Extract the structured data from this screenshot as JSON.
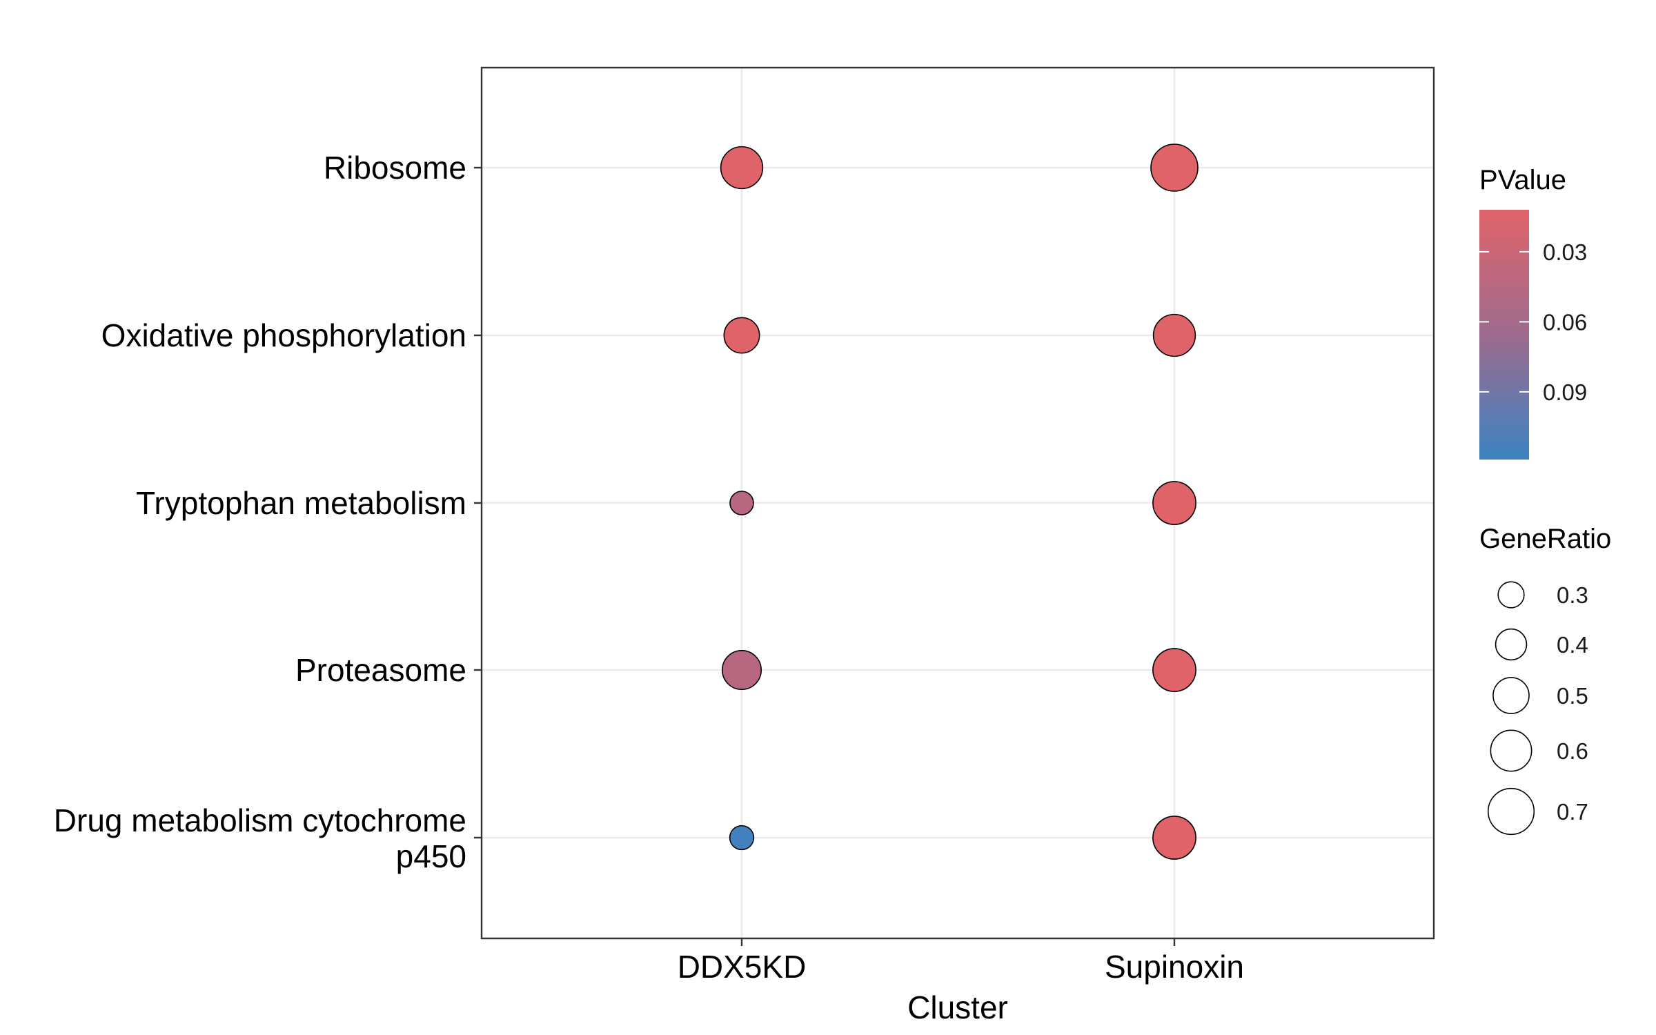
{
  "chart_data": {
    "type": "scatter",
    "title": "",
    "xlabel": "Cluster",
    "ylabel": "",
    "categories_x": [
      "DDX5KD",
      "Supinoxin"
    ],
    "categories_y": [
      [
        "Ribosome"
      ],
      [
        "Oxidative phosphorylation"
      ],
      [
        "Tryptophan metabolism"
      ],
      [
        "Proteasome"
      ],
      [
        "Drug metabolism cytochrome",
        "p450"
      ]
    ],
    "grid": true,
    "points": [
      {
        "x": "DDX5KD",
        "y": 0,
        "gene_ratio": 0.62,
        "pvalue": 0.012
      },
      {
        "x": "DDX5KD",
        "y": 1,
        "gene_ratio": 0.49,
        "pvalue": 0.012
      },
      {
        "x": "DDX5KD",
        "y": 2,
        "gene_ratio": 0.25,
        "pvalue": 0.045
      },
      {
        "x": "DDX5KD",
        "y": 3,
        "gene_ratio": 0.56,
        "pvalue": 0.045
      },
      {
        "x": "DDX5KD",
        "y": 4,
        "gene_ratio": 0.26,
        "pvalue": 0.115
      },
      {
        "x": "Supinoxin",
        "y": 0,
        "gene_ratio": 0.72,
        "pvalue": 0.012
      },
      {
        "x": "Supinoxin",
        "y": 1,
        "gene_ratio": 0.62,
        "pvalue": 0.012
      },
      {
        "x": "Supinoxin",
        "y": 2,
        "gene_ratio": 0.64,
        "pvalue": 0.012
      },
      {
        "x": "Supinoxin",
        "y": 3,
        "gene_ratio": 0.64,
        "pvalue": 0.012
      },
      {
        "x": "Supinoxin",
        "y": 4,
        "gene_ratio": 0.64,
        "pvalue": 0.012
      }
    ],
    "legend_color": {
      "title": "PValue",
      "placement": "right",
      "range": [
        0.012,
        0.119
      ],
      "low_color": "#e0636a",
      "mid_color": "#9e6b8e",
      "high_color": "#3b83c2",
      "ticks": [
        0.03,
        0.06,
        0.09
      ],
      "tick_labels": [
        "0.03",
        "0.06",
        "0.09"
      ]
    },
    "legend_size": {
      "title": "GeneRatio",
      "placement": "right",
      "values": [
        0.3,
        0.4,
        0.5,
        0.6,
        0.7
      ],
      "labels": [
        "0.3",
        "0.4",
        "0.5",
        "0.6",
        "0.7"
      ]
    }
  }
}
